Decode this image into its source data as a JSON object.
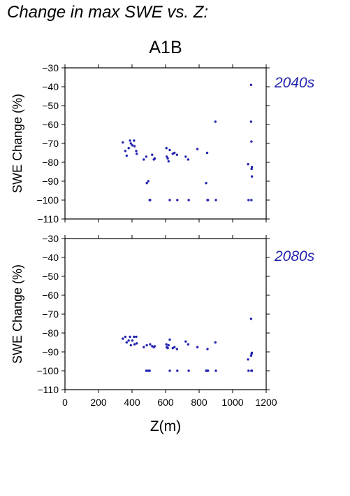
{
  "page": {
    "heading": "Change in max SWE vs. Z:",
    "scenario": "A1B"
  },
  "chart_data": [
    {
      "type": "scatter",
      "panel_label": "2040s",
      "ylabel": "SWE Change (%)",
      "xlabel": "",
      "xlim": [
        0,
        1200
      ],
      "ylim": [
        -110,
        -30
      ],
      "yticks": [
        -30,
        -40,
        -50,
        -60,
        -70,
        -80,
        -90,
        -100,
        -110
      ],
      "xticks": [
        0,
        200,
        400,
        600,
        800,
        1000,
        1200
      ],
      "show_xtick_labels": false,
      "grid": false,
      "marker_color": "#2424b0",
      "label_color": "#2424b0",
      "points": [
        [
          345,
          -69.5
        ],
        [
          360,
          -74
        ],
        [
          368,
          -76.5
        ],
        [
          380,
          -72.5
        ],
        [
          388,
          -68.5
        ],
        [
          393,
          -70
        ],
        [
          402,
          -71
        ],
        [
          412,
          -68.5
        ],
        [
          415,
          -71.5
        ],
        [
          425,
          -74
        ],
        [
          428,
          -75.5
        ],
        [
          470,
          -78.5
        ],
        [
          485,
          -77
        ],
        [
          488,
          -91
        ],
        [
          497,
          -90
        ],
        [
          505,
          -100
        ],
        [
          508,
          -100
        ],
        [
          520,
          -76
        ],
        [
          530,
          -78.5
        ],
        [
          535,
          -78
        ],
        [
          605,
          -72.5
        ],
        [
          607,
          -77
        ],
        [
          613,
          -78
        ],
        [
          618,
          -79.5
        ],
        [
          625,
          -73.5
        ],
        [
          625,
          -100
        ],
        [
          643,
          -75.5
        ],
        [
          653,
          -75
        ],
        [
          668,
          -76
        ],
        [
          670,
          -100
        ],
        [
          720,
          -77
        ],
        [
          735,
          -78.5
        ],
        [
          738,
          -100
        ],
        [
          790,
          -73
        ],
        [
          842,
          -91
        ],
        [
          848,
          -75
        ],
        [
          850,
          -100
        ],
        [
          853,
          -100
        ],
        [
          897,
          -58.5
        ],
        [
          900,
          -100
        ],
        [
          1092,
          -81
        ],
        [
          1095,
          -100
        ],
        [
          1110,
          -58.5
        ],
        [
          1110,
          -39
        ],
        [
          1112,
          -100
        ],
        [
          1112,
          -69
        ],
        [
          1113,
          -83.5
        ],
        [
          1115,
          -82.5
        ],
        [
          1115,
          -87.5
        ]
      ]
    },
    {
      "type": "scatter",
      "panel_label": "2080s",
      "ylabel": "SWE Change (%)",
      "xlabel": "Z(m)",
      "xlim": [
        0,
        1200
      ],
      "ylim": [
        -110,
        -30
      ],
      "yticks": [
        -30,
        -40,
        -50,
        -60,
        -70,
        -80,
        -90,
        -100,
        -110
      ],
      "xticks": [
        0,
        200,
        400,
        600,
        800,
        1000,
        1200
      ],
      "show_xtick_labels": true,
      "grid": false,
      "marker_color": "#2424b0",
      "label_color": "#2424b0",
      "points": [
        [
          345,
          -83
        ],
        [
          360,
          -82
        ],
        [
          368,
          -85
        ],
        [
          380,
          -84
        ],
        [
          388,
          -82
        ],
        [
          393,
          -86.5
        ],
        [
          402,
          -84
        ],
        [
          412,
          -82
        ],
        [
          415,
          -86
        ],
        [
          425,
          -82
        ],
        [
          428,
          -85.5
        ],
        [
          470,
          -87.5
        ],
        [
          485,
          -100
        ],
        [
          488,
          -86.5
        ],
        [
          497,
          -100
        ],
        [
          505,
          -100
        ],
        [
          508,
          -86
        ],
        [
          520,
          -87
        ],
        [
          530,
          -87.5
        ],
        [
          535,
          -87
        ],
        [
          605,
          -86
        ],
        [
          607,
          -87.5
        ],
        [
          613,
          -88
        ],
        [
          618,
          -86.5
        ],
        [
          625,
          -83.5
        ],
        [
          625,
          -100
        ],
        [
          643,
          -88
        ],
        [
          653,
          -87.5
        ],
        [
          668,
          -88.5
        ],
        [
          670,
          -100
        ],
        [
          720,
          -84.5
        ],
        [
          735,
          -86
        ],
        [
          738,
          -100
        ],
        [
          790,
          -87.5
        ],
        [
          842,
          -100
        ],
        [
          848,
          -100
        ],
        [
          850,
          -88.5
        ],
        [
          853,
          -100
        ],
        [
          897,
          -85
        ],
        [
          900,
          -100
        ],
        [
          1092,
          -94
        ],
        [
          1095,
          -100
        ],
        [
          1110,
          -72.5
        ],
        [
          1110,
          -92
        ],
        [
          1112,
          -100
        ],
        [
          1113,
          -91
        ],
        [
          1115,
          -90.5
        ],
        [
          1115,
          -100
        ]
      ]
    }
  ]
}
